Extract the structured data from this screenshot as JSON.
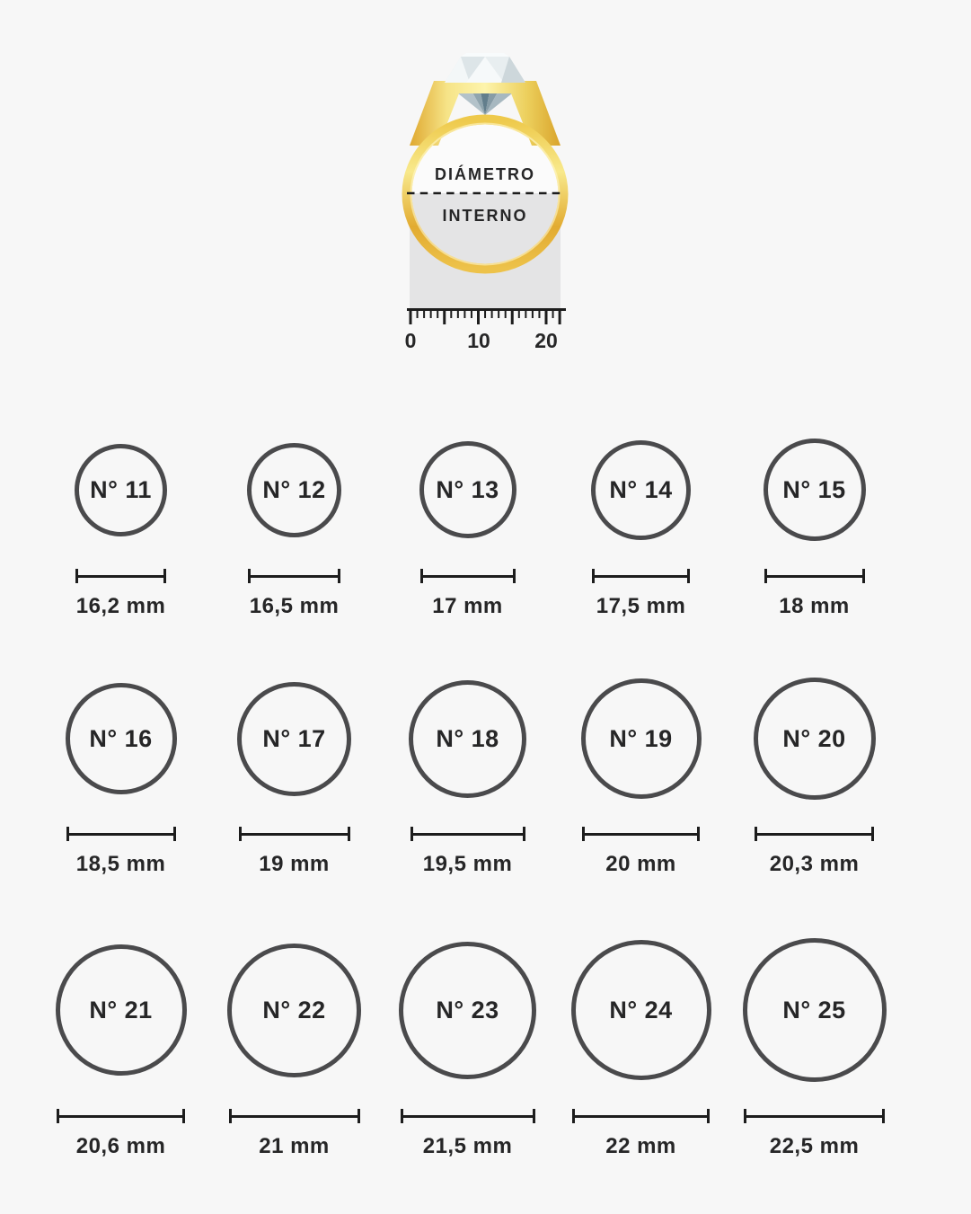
{
  "page": {
    "background": "#f7f7f7"
  },
  "ring_diagram": {
    "label_line1": "DIÁMETRO",
    "label_line2": "INTERNO",
    "ruler_labels": [
      "0",
      "10",
      "20"
    ],
    "colors": {
      "gold": "#e9c64a",
      "measurement_band_gray": "#e4e4e5",
      "diamond_light": "#f3f7f8",
      "diamond_dark": "#627e8c",
      "line_dark": "#1d1d1d"
    }
  },
  "grid": {
    "circle_stroke_color": "#4a4a4c",
    "text_color": "#262627"
  },
  "sizes": [
    {
      "number": "N° 11",
      "diameter": "16,2 mm",
      "mm": 16.2
    },
    {
      "number": "N° 12",
      "diameter": "16,5 mm",
      "mm": 16.5
    },
    {
      "number": "N° 13",
      "diameter": "17 mm",
      "mm": 17
    },
    {
      "number": "N° 14",
      "diameter": "17,5 mm",
      "mm": 17.5
    },
    {
      "number": "N° 15",
      "diameter": "18 mm",
      "mm": 18
    },
    {
      "number": "N° 16",
      "diameter": "18,5 mm",
      "mm": 18.5
    },
    {
      "number": "N° 17",
      "diameter": "19 mm",
      "mm": 19
    },
    {
      "number": "N° 18",
      "diameter": "19,5 mm",
      "mm": 19.5
    },
    {
      "number": "N° 19",
      "diameter": "20 mm",
      "mm": 20
    },
    {
      "number": "N° 20",
      "diameter": "20,3 mm",
      "mm": 20.3
    },
    {
      "number": "N° 21",
      "diameter": "20,6 mm",
      "mm": 20.6
    },
    {
      "number": "N° 22",
      "diameter": "21 mm",
      "mm": 21
    },
    {
      "number": "N° 23",
      "diameter": "21,5 mm",
      "mm": 21.5
    },
    {
      "number": "N° 24",
      "diameter": "22 mm",
      "mm": 22
    },
    {
      "number": "N° 25",
      "diameter": "22,5 mm",
      "mm": 22.5
    }
  ]
}
